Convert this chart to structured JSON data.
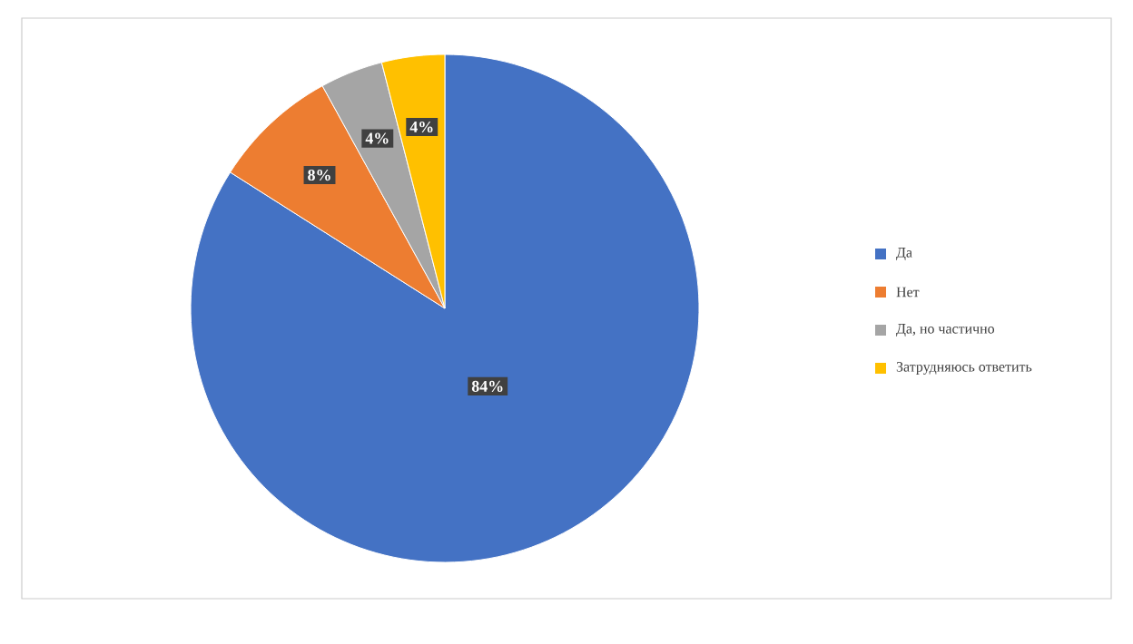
{
  "chart_data": {
    "type": "pie",
    "categories": [
      "Да",
      "Нет",
      "Да, но частично",
      "Затрудняюсь ответить"
    ],
    "values": [
      84,
      8,
      4,
      4
    ],
    "colors": [
      "#4472c4",
      "#ed7d31",
      "#a5a5a5",
      "#ffc000"
    ],
    "value_labels": [
      "84%",
      "8%",
      "4%",
      "4%"
    ],
    "legend": "right"
  }
}
